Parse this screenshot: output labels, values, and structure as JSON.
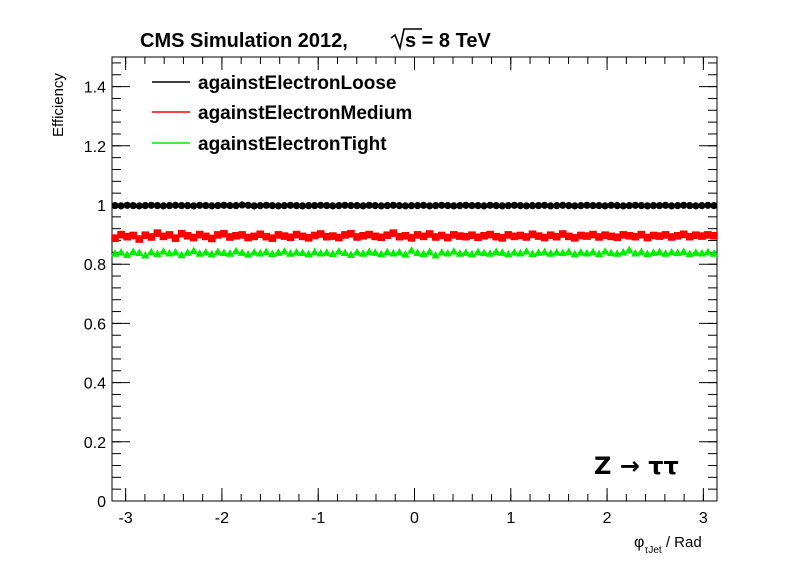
{
  "chart_data": {
    "type": "scatter",
    "title": "CMS Simulation 2012,",
    "energy_label": {
      "sqrt": "s",
      "rest": " = 8 TeV"
    },
    "ylabel": "Efficiency",
    "xlabel": {
      "base": "φ",
      "sub": "τJet",
      "unit": " / Rad"
    },
    "annotation": "Z → ττ",
    "xlim": [
      -3.1416,
      3.1416
    ],
    "ylim": [
      0,
      1.5
    ],
    "x_ticks": [
      -3,
      -2,
      -1,
      0,
      1,
      2,
      3
    ],
    "x_tick_labels": [
      "-3",
      "-2",
      "-1",
      "0",
      "1",
      "2",
      "3"
    ],
    "y_ticks": [
      0,
      0.2,
      0.4,
      0.6,
      0.8,
      1.0,
      1.2,
      1.4
    ],
    "y_tick_labels": [
      "0",
      "0.2",
      "0.4",
      "0.6",
      "0.8",
      "1",
      "1.2",
      "1.4"
    ],
    "grid": false,
    "legend_position": "top-left",
    "n_points": 100,
    "series": [
      {
        "name": "againstElectronLoose",
        "color": "#000000",
        "marker": "circle",
        "mean": 0.998,
        "values": [
          0.998,
          0.997,
          0.999,
          0.998,
          0.997,
          0.998,
          0.999,
          0.998,
          0.997,
          0.998,
          0.999,
          0.998,
          0.998,
          0.997,
          0.999,
          0.998,
          0.997,
          0.998,
          0.999,
          0.998,
          0.998,
          1.0,
          0.999,
          0.997,
          0.998,
          0.999,
          0.998,
          0.997,
          0.998,
          0.999,
          0.998,
          0.997,
          0.998,
          0.998,
          0.999,
          0.998,
          0.997,
          0.998,
          0.999,
          0.998,
          0.998,
          0.997,
          0.999,
          0.998,
          0.997,
          0.998,
          0.999,
          0.998,
          0.997,
          0.998,
          0.998,
          0.999,
          0.997,
          0.998,
          0.999,
          0.998,
          0.997,
          0.998,
          0.999,
          0.998,
          0.998,
          0.997,
          0.999,
          0.998,
          0.997,
          0.998,
          0.999,
          0.998,
          0.997,
          0.998,
          0.998,
          0.999,
          0.997,
          0.998,
          0.999,
          0.998,
          0.997,
          0.998,
          0.999,
          0.998,
          0.998,
          0.997,
          0.999,
          0.998,
          0.997,
          0.998,
          0.999,
          0.998,
          0.997,
          0.998,
          0.998,
          0.999,
          0.997,
          0.998,
          0.999,
          0.998,
          0.997,
          0.998,
          0.999,
          0.998
        ]
      },
      {
        "name": "againstElectronMedium",
        "color": "#ff0000",
        "marker": "square",
        "mean": 0.895,
        "values": [
          0.888,
          0.9,
          0.893,
          0.897,
          0.885,
          0.898,
          0.892,
          0.905,
          0.894,
          0.899,
          0.888,
          0.903,
          0.896,
          0.89,
          0.9,
          0.894,
          0.887,
          0.899,
          0.903,
          0.892,
          0.896,
          0.899,
          0.89,
          0.894,
          0.901,
          0.893,
          0.888,
          0.899,
          0.895,
          0.891,
          0.9,
          0.894,
          0.889,
          0.897,
          0.902,
          0.893,
          0.895,
          0.89,
          0.899,
          0.903,
          0.892,
          0.896,
          0.9,
          0.894,
          0.891,
          0.898,
          0.905,
          0.893,
          0.896,
          0.889,
          0.899,
          0.894,
          0.902,
          0.892,
          0.897,
          0.89,
          0.899,
          0.895,
          0.893,
          0.898,
          0.891,
          0.896,
          0.9,
          0.893,
          0.889,
          0.899,
          0.894,
          0.897,
          0.892,
          0.901,
          0.895,
          0.89,
          0.898,
          0.893,
          0.902,
          0.894,
          0.889,
          0.897,
          0.895,
          0.9,
          0.892,
          0.898,
          0.894,
          0.891,
          0.899,
          0.896,
          0.893,
          0.9,
          0.89,
          0.897,
          0.895,
          0.899,
          0.892,
          0.896,
          0.901,
          0.893,
          0.898,
          0.895,
          0.899,
          0.896
        ]
      },
      {
        "name": "againstElectronTight",
        "color": "#00ee00",
        "marker": "triangle",
        "mean": 0.838,
        "values": [
          0.836,
          0.84,
          0.832,
          0.842,
          0.838,
          0.83,
          0.841,
          0.835,
          0.843,
          0.837,
          0.84,
          0.831,
          0.839,
          0.845,
          0.836,
          0.84,
          0.834,
          0.842,
          0.838,
          0.836,
          0.844,
          0.839,
          0.833,
          0.84,
          0.837,
          0.842,
          0.835,
          0.839,
          0.843,
          0.836,
          0.84,
          0.838,
          0.834,
          0.841,
          0.837,
          0.839,
          0.835,
          0.843,
          0.838,
          0.832,
          0.84,
          0.836,
          0.842,
          0.839,
          0.834,
          0.841,
          0.837,
          0.84,
          0.833,
          0.846,
          0.838,
          0.835,
          0.842,
          0.83,
          0.84,
          0.837,
          0.843,
          0.836,
          0.839,
          0.834,
          0.841,
          0.838,
          0.836,
          0.842,
          0.839,
          0.834,
          0.84,
          0.837,
          0.843,
          0.835,
          0.839,
          0.841,
          0.836,
          0.84,
          0.838,
          0.842,
          0.834,
          0.84,
          0.837,
          0.841,
          0.835,
          0.843,
          0.838,
          0.836,
          0.84,
          0.848,
          0.837,
          0.842,
          0.835,
          0.839,
          0.841,
          0.836,
          0.84,
          0.838,
          0.842,
          0.835,
          0.839,
          0.837,
          0.841,
          0.836
        ]
      }
    ]
  }
}
